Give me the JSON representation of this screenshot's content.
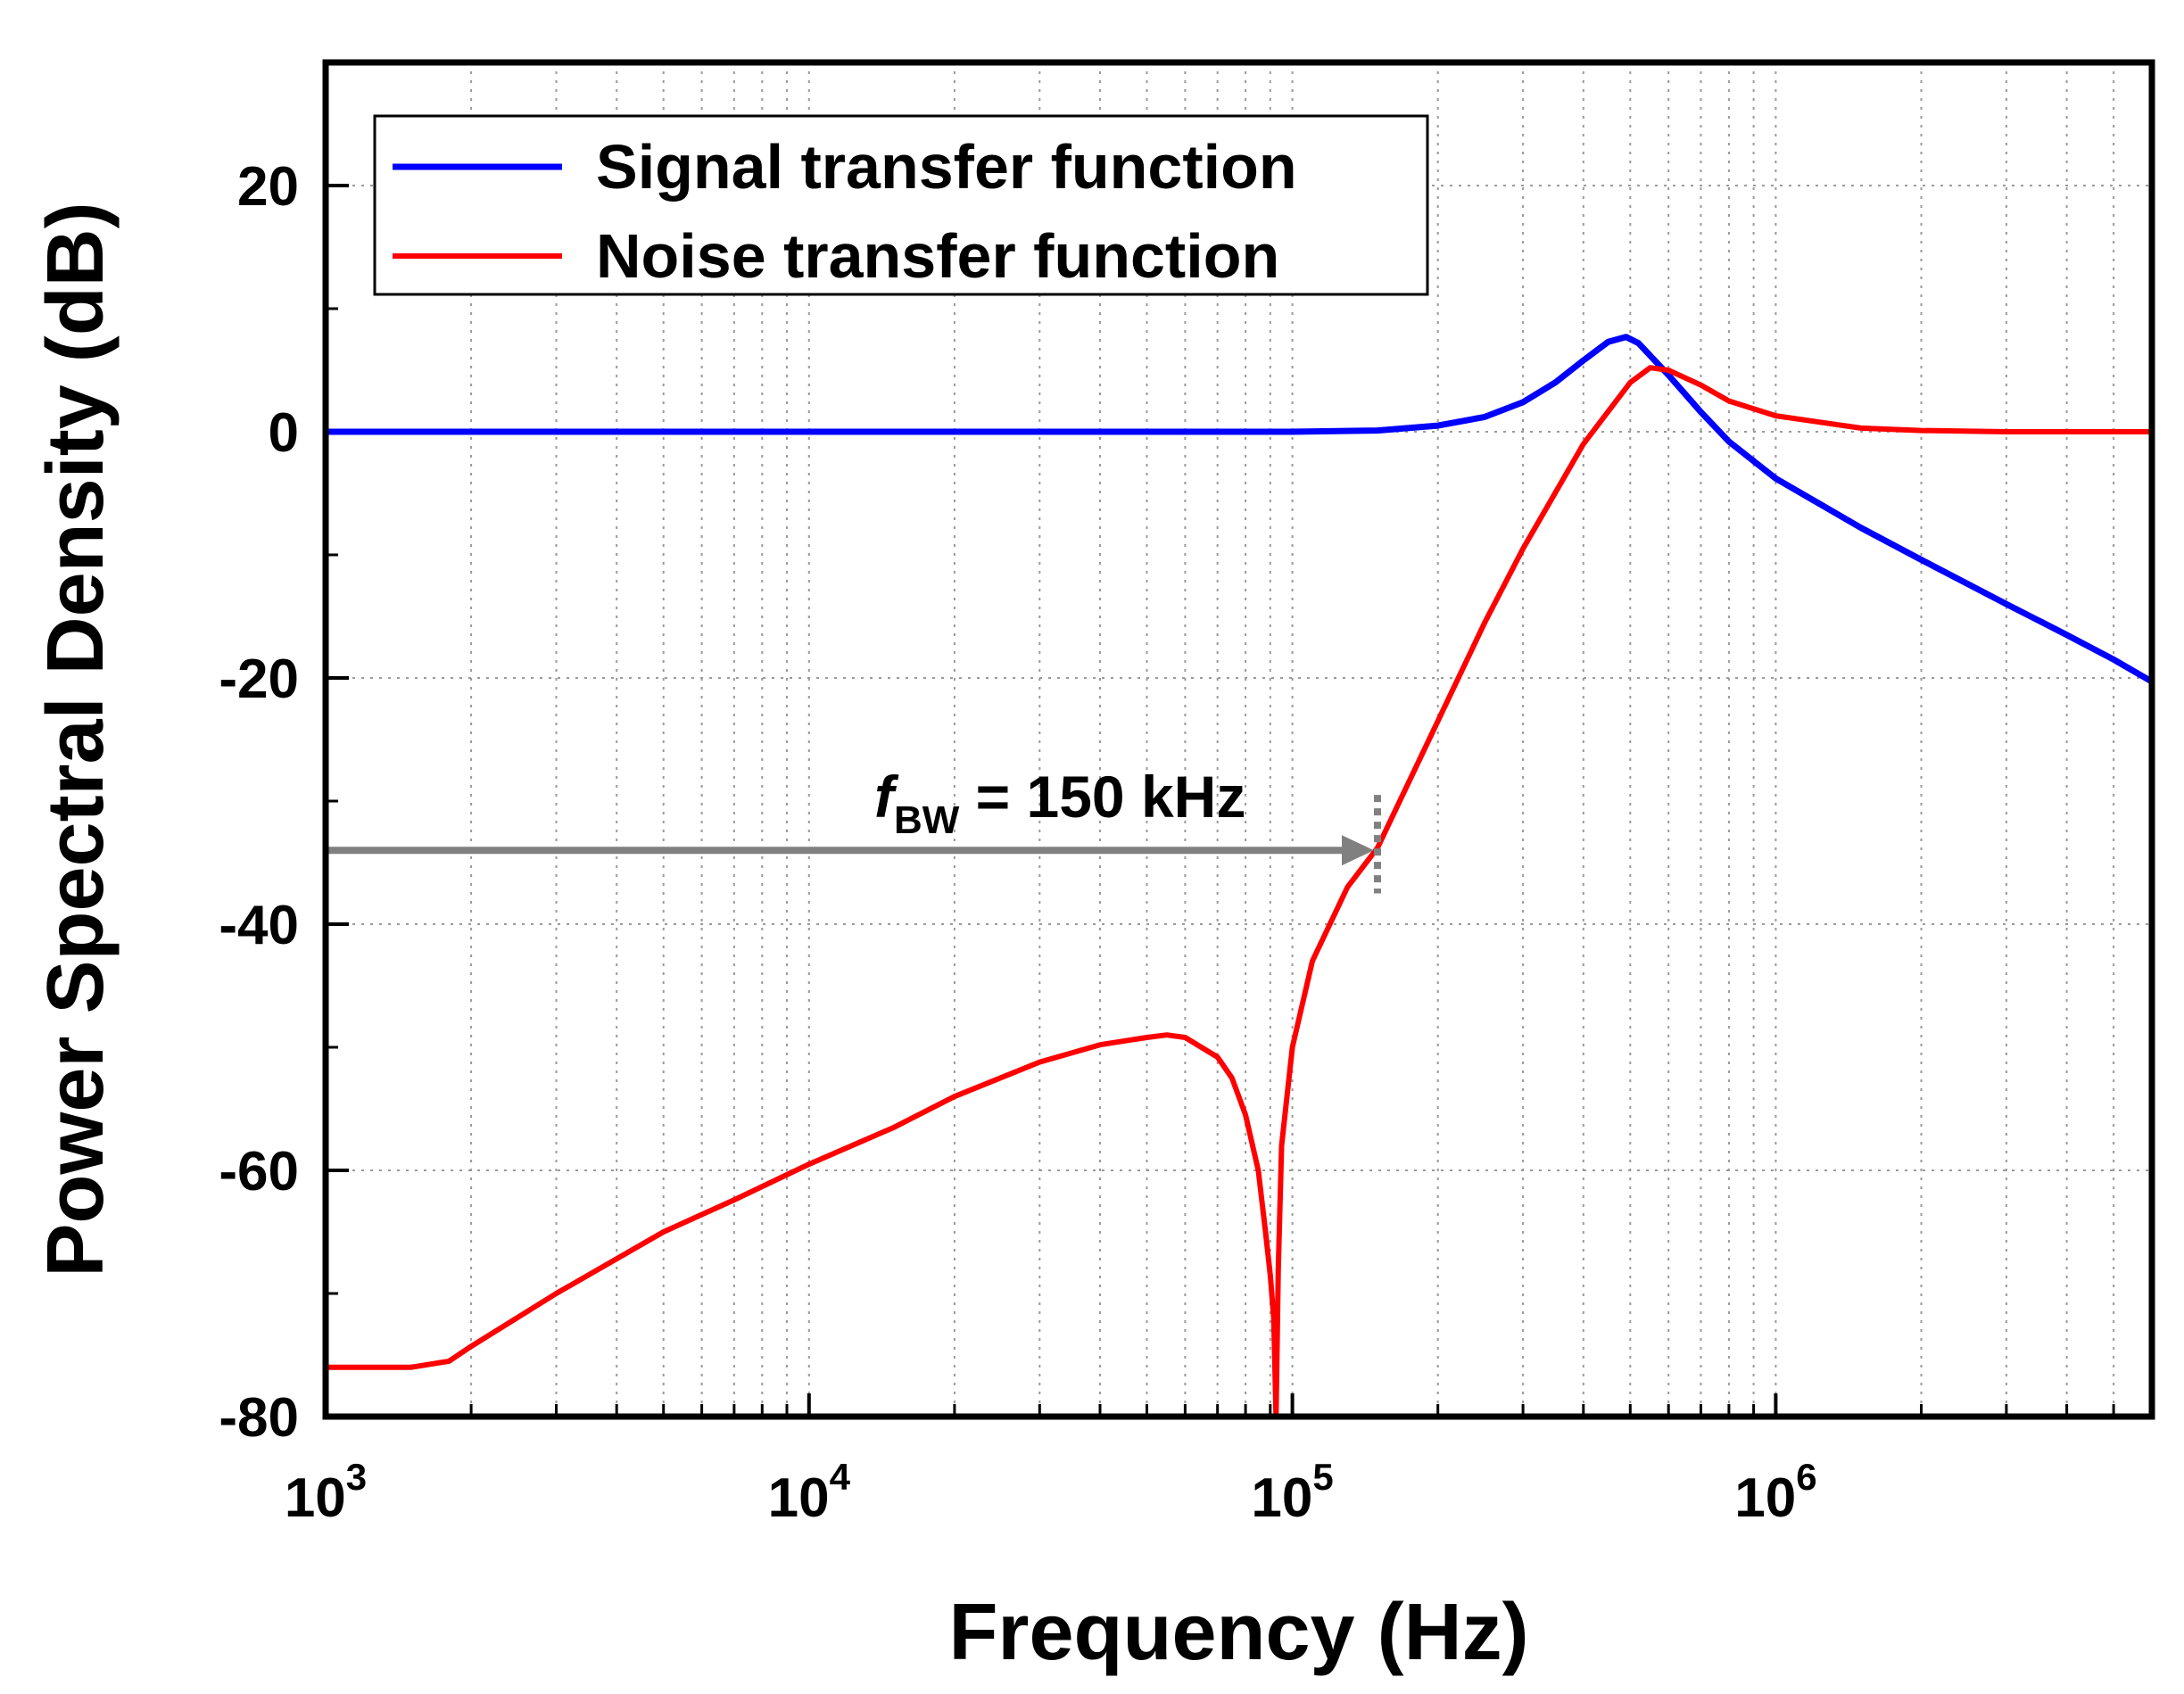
{
  "chart_data": {
    "type": "line",
    "xscale": "log",
    "xlim": [
      1000,
      6000000
    ],
    "ylim": [
      -80,
      30
    ],
    "xlabel": "Frequency (Hz)",
    "ylabel": "Power Spectral Density (dB)",
    "x_ticks": [
      {
        "value": 1000,
        "base": "10",
        "exp": "3"
      },
      {
        "value": 10000,
        "base": "10",
        "exp": "4"
      },
      {
        "value": 100000,
        "base": "10",
        "exp": "5"
      },
      {
        "value": 1000000,
        "base": "10",
        "exp": "6"
      }
    ],
    "y_ticks": [
      {
        "value": 20,
        "label": "20"
      },
      {
        "value": 0,
        "label": "0"
      },
      {
        "value": -20,
        "label": "-20"
      },
      {
        "value": -40,
        "label": "-40"
      },
      {
        "value": -60,
        "label": "-60"
      },
      {
        "value": -80,
        "label": "-80"
      }
    ],
    "y_minor_ticks": [
      10,
      -10,
      -30,
      -50,
      -70
    ],
    "grid": true,
    "legend_position": "top-left",
    "series": [
      {
        "name": "Signal transfer function",
        "color": "#0000ff",
        "x": [
          1000,
          10000,
          100000,
          150000,
          200000,
          250000,
          300000,
          350000,
          400000,
          450000,
          490000,
          520000,
          600000,
          700000,
          800000,
          1000000,
          1500000,
          2000000,
          3000000,
          4000000,
          5000000,
          6000000
        ],
        "y": [
          0,
          0,
          0,
          0.1,
          0.5,
          1.2,
          2.4,
          4.0,
          5.8,
          7.3,
          7.7,
          7.2,
          4.6,
          1.6,
          -0.8,
          -3.8,
          -7.8,
          -10.4,
          -14.0,
          -16.5,
          -18.5,
          -20.3
        ]
      },
      {
        "name": "Noise transfer function",
        "color": "#ff0000",
        "x": [
          1000,
          1500,
          1800,
          2000,
          3000,
          5000,
          7000,
          10000,
          15000,
          20000,
          30000,
          40000,
          50000,
          55000,
          60000,
          70000,
          75000,
          80000,
          85000,
          88000,
          90000,
          91500,
          92500,
          93500,
          95000,
          100000,
          110000,
          130000,
          150000,
          200000,
          250000,
          300000,
          400000,
          500000,
          550000,
          600000,
          700000,
          800000,
          1000000,
          1500000,
          2000000,
          3000000,
          4000000,
          6000000
        ],
        "y": [
          -76,
          -76,
          -75.5,
          -74.3,
          -70,
          -65,
          -62.4,
          -59.5,
          -56.5,
          -54,
          -51.2,
          -49.8,
          -49.2,
          -49.0,
          -49.2,
          -50.8,
          -52.5,
          -55.5,
          -60,
          -65,
          -68.5,
          -72,
          -80,
          -68,
          -58,
          -50,
          -43,
          -37,
          -33.8,
          -23.5,
          -15.5,
          -9.5,
          -1.0,
          4.0,
          5.2,
          5.0,
          3.8,
          2.5,
          1.3,
          0.3,
          0.1,
          0,
          0,
          0
        ]
      }
    ],
    "annotation": {
      "italic_part": "f",
      "subscript": "BW",
      "text": " = 150 kHz",
      "arrow_from_x": 1000,
      "arrow_to_x": 150000,
      "arrow_y": -34,
      "marker_x": 150000,
      "marker_y_range": [
        -29.5,
        -37.5
      ],
      "color": "#808080"
    }
  }
}
